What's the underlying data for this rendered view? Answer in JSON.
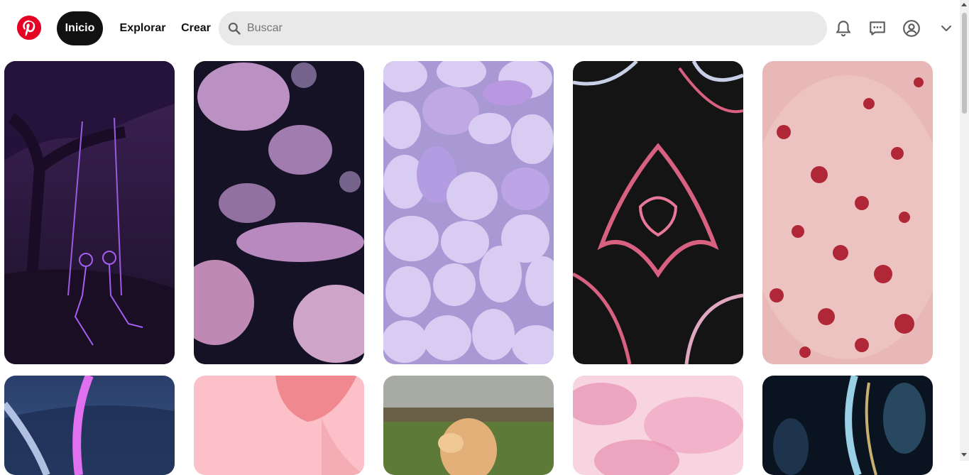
{
  "header": {
    "logo_icon": "pinterest-logo-icon",
    "nav": [
      {
        "label": "Inicio",
        "active": true
      },
      {
        "label": "Explorar",
        "active": false
      },
      {
        "label": "Crear",
        "active": false
      }
    ],
    "search": {
      "placeholder": "Buscar",
      "value": ""
    },
    "icons": [
      "bell-icon",
      "chat-icon",
      "profile-icon",
      "chevron-down-icon"
    ]
  },
  "colors": {
    "brand": "#e60023",
    "active_nav_bg": "#111111",
    "search_bg": "#e9e9e9"
  },
  "pins": [
    {
      "name": "pin-purple-skeletons-swing",
      "colors": [
        "#2a1838",
        "#8a3fd6"
      ]
    },
    {
      "name": "pin-pink-jellyfish",
      "colors": [
        "#1a1430",
        "#e6a8e8"
      ]
    },
    {
      "name": "pin-lavender-pebbles",
      "colors": [
        "#b8a8e0",
        "#e6dcf6"
      ]
    },
    {
      "name": "pin-chrome-heart",
      "colors": [
        "#0e0e0e",
        "#d84a6a"
      ]
    },
    {
      "name": "pin-pink-resin-roses",
      "colors": [
        "#e6b0b4",
        "#b0303a"
      ]
    },
    {
      "name": "pin-blue-neon-sword",
      "colors": [
        "#2e4670",
        "#e060f0"
      ]
    },
    {
      "name": "pin-pink-jellyfish-bg",
      "colors": [
        "#fbbcc4",
        "#f09098"
      ]
    },
    {
      "name": "pin-puppy-beach",
      "colors": [
        "#6a7040",
        "#e0b078"
      ]
    },
    {
      "name": "pin-pink-petals",
      "colors": [
        "#f8c8d8",
        "#e890b0"
      ]
    },
    {
      "name": "pin-blue-jellyfish-dark",
      "colors": [
        "#0a1420",
        "#9ad0e6"
      ]
    }
  ]
}
